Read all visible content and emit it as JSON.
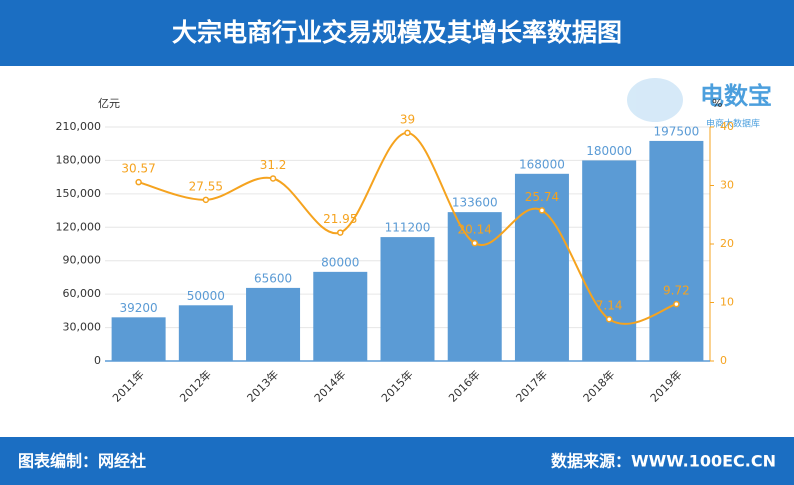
{
  "header": {
    "title": "大宗电商行业交易规模及其增长率数据图"
  },
  "footer": {
    "left": "图表编制：网经社",
    "right": "数据来源：WWW.100EC.CN"
  },
  "logo": {
    "name": "电数宝",
    "tagline": "电商大数据库"
  },
  "chart_data": {
    "type": "bar-line",
    "y_label": "亿元",
    "y2_label": "%",
    "categories": [
      "2011年",
      "2012年",
      "2013年",
      "2014年",
      "2015年",
      "2016年",
      "2017年",
      "2018年",
      "2019年"
    ],
    "series": [
      {
        "type": "bar",
        "color": "#5b9bd5",
        "values": [
          39200,
          50000,
          65600,
          80000,
          111200,
          133600,
          168000,
          180000,
          197500
        ]
      },
      {
        "type": "line",
        "axis": "y2",
        "color": "#f5a31f",
        "values": [
          30.57,
          27.55,
          31.2,
          21.95,
          39,
          20.14,
          25.74,
          7.14,
          9.72
        ]
      }
    ],
    "ylim": [
      0,
      210000
    ],
    "yticks": [
      0,
      {
        "value": 30000,
        "label": "30,000"
      },
      {
        "value": 60000,
        "label": "60,000"
      },
      {
        "value": 90000,
        "label": "90,000"
      },
      {
        "value": 120000,
        "label": "120,000"
      },
      {
        "value": 150000,
        "label": "150,000"
      },
      {
        "value": 180000,
        "label": "180,000"
      },
      {
        "value": 210000,
        "label": "210,000"
      }
    ],
    "y2lim": [
      0,
      40
    ],
    "y2ticks": [
      0,
      10,
      20,
      30,
      40
    ],
    "grid": true
  }
}
